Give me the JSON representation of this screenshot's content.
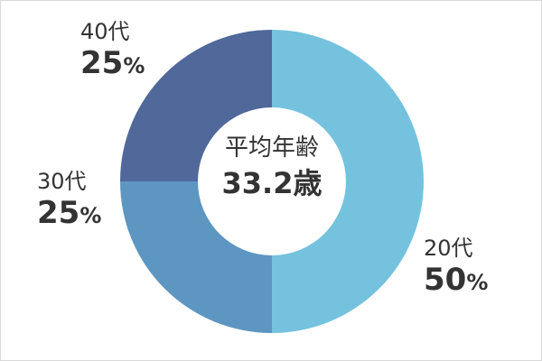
{
  "chart_data": {
    "type": "pie",
    "donut": true,
    "categories": [
      "20代",
      "30代",
      "40代"
    ],
    "values": [
      50,
      25,
      25
    ],
    "unit": "%",
    "colors": [
      "#74c2de",
      "#5e96c2",
      "#50689a"
    ],
    "center": {
      "title": "平均年齢",
      "value": "33.2",
      "value_unit": "歳"
    },
    "labels": [
      {
        "name": "20代",
        "value": "50",
        "unit": "%"
      },
      {
        "name": "30代",
        "value": "25",
        "unit": "%"
      },
      {
        "name": "40代",
        "value": "25",
        "unit": "%"
      }
    ]
  }
}
